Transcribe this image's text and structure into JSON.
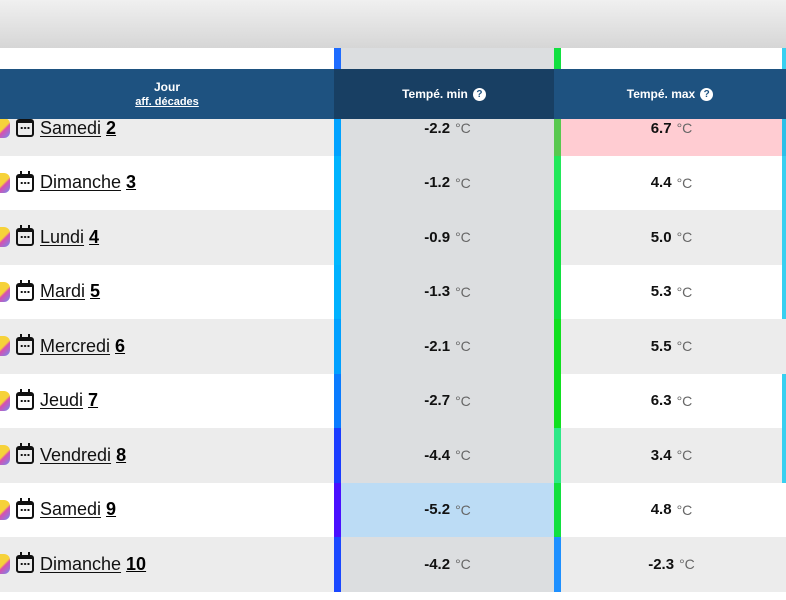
{
  "header": {
    "jour": "Jour",
    "decades_link": "aff. décades",
    "tmin": "Tempé. min",
    "tmax": "Tempé. max",
    "help": "?"
  },
  "unit": "°C",
  "colors": {
    "header_bg": "#1e5280",
    "header_min_bg": "#183f63",
    "hot_cell": "#ffccd2",
    "cold_cell": "#bcdcf5"
  },
  "rows": [
    {
      "day": "Samedi",
      "num": "2",
      "tmin": "-2.2",
      "tmax": "6.7",
      "minbar": "#00a2ff",
      "maxbar": "#58c84f",
      "rightbar": "#2bc0e8",
      "maxbg": "#ffccd2",
      "minbg": ""
    },
    {
      "day": "Dimanche",
      "num": "3",
      "tmin": "-1.2",
      "tmax": "4.4",
      "minbar": "#00b4ff",
      "maxbar": "#22e85a",
      "rightbar": "#38d0f0",
      "maxbg": "",
      "minbg": ""
    },
    {
      "day": "Lundi",
      "num": "4",
      "tmin": "-0.9",
      "tmax": "5.0",
      "minbar": "#00b8ff",
      "maxbar": "#11e040",
      "rightbar": "#38d0f0",
      "maxbg": "",
      "minbg": ""
    },
    {
      "day": "Mardi",
      "num": "5",
      "tmin": "-1.3",
      "tmax": "5.3",
      "minbar": "#00b2ff",
      "maxbar": "#11e040",
      "rightbar": "#38d0f0",
      "maxbg": "",
      "minbg": ""
    },
    {
      "day": "Mercredi",
      "num": "6",
      "tmin": "-2.1",
      "tmax": "5.5",
      "minbar": "#00a0ff",
      "maxbar": "#11e020",
      "rightbar": "",
      "maxbg": "",
      "minbg": ""
    },
    {
      "day": "Jeudi",
      "num": "7",
      "tmin": "-2.7",
      "tmax": "6.3",
      "minbar": "#0a7cff",
      "maxbar": "#11e020",
      "rightbar": "#38d0f0",
      "maxbg": "",
      "minbg": ""
    },
    {
      "day": "Vendredi",
      "num": "8",
      "tmin": "-4.4",
      "tmax": "3.4",
      "minbar": "#1a3cff",
      "maxbar": "#2ee888",
      "rightbar": "#38d0f0",
      "maxbg": "",
      "minbg": ""
    },
    {
      "day": "Samedi",
      "num": "9",
      "tmin": "-5.2",
      "tmax": "4.8",
      "minbar": "#4a10ff",
      "maxbar": "#11e040",
      "rightbar": "",
      "maxbg": "",
      "minbg": "#bcdcf5"
    },
    {
      "day": "Dimanche",
      "num": "10",
      "tmin": "-4.2",
      "tmax": "-2.3",
      "minbar": "#1a48ff",
      "maxbar": "#1e90ff",
      "rightbar": "",
      "maxbg": "",
      "minbg": ""
    }
  ]
}
